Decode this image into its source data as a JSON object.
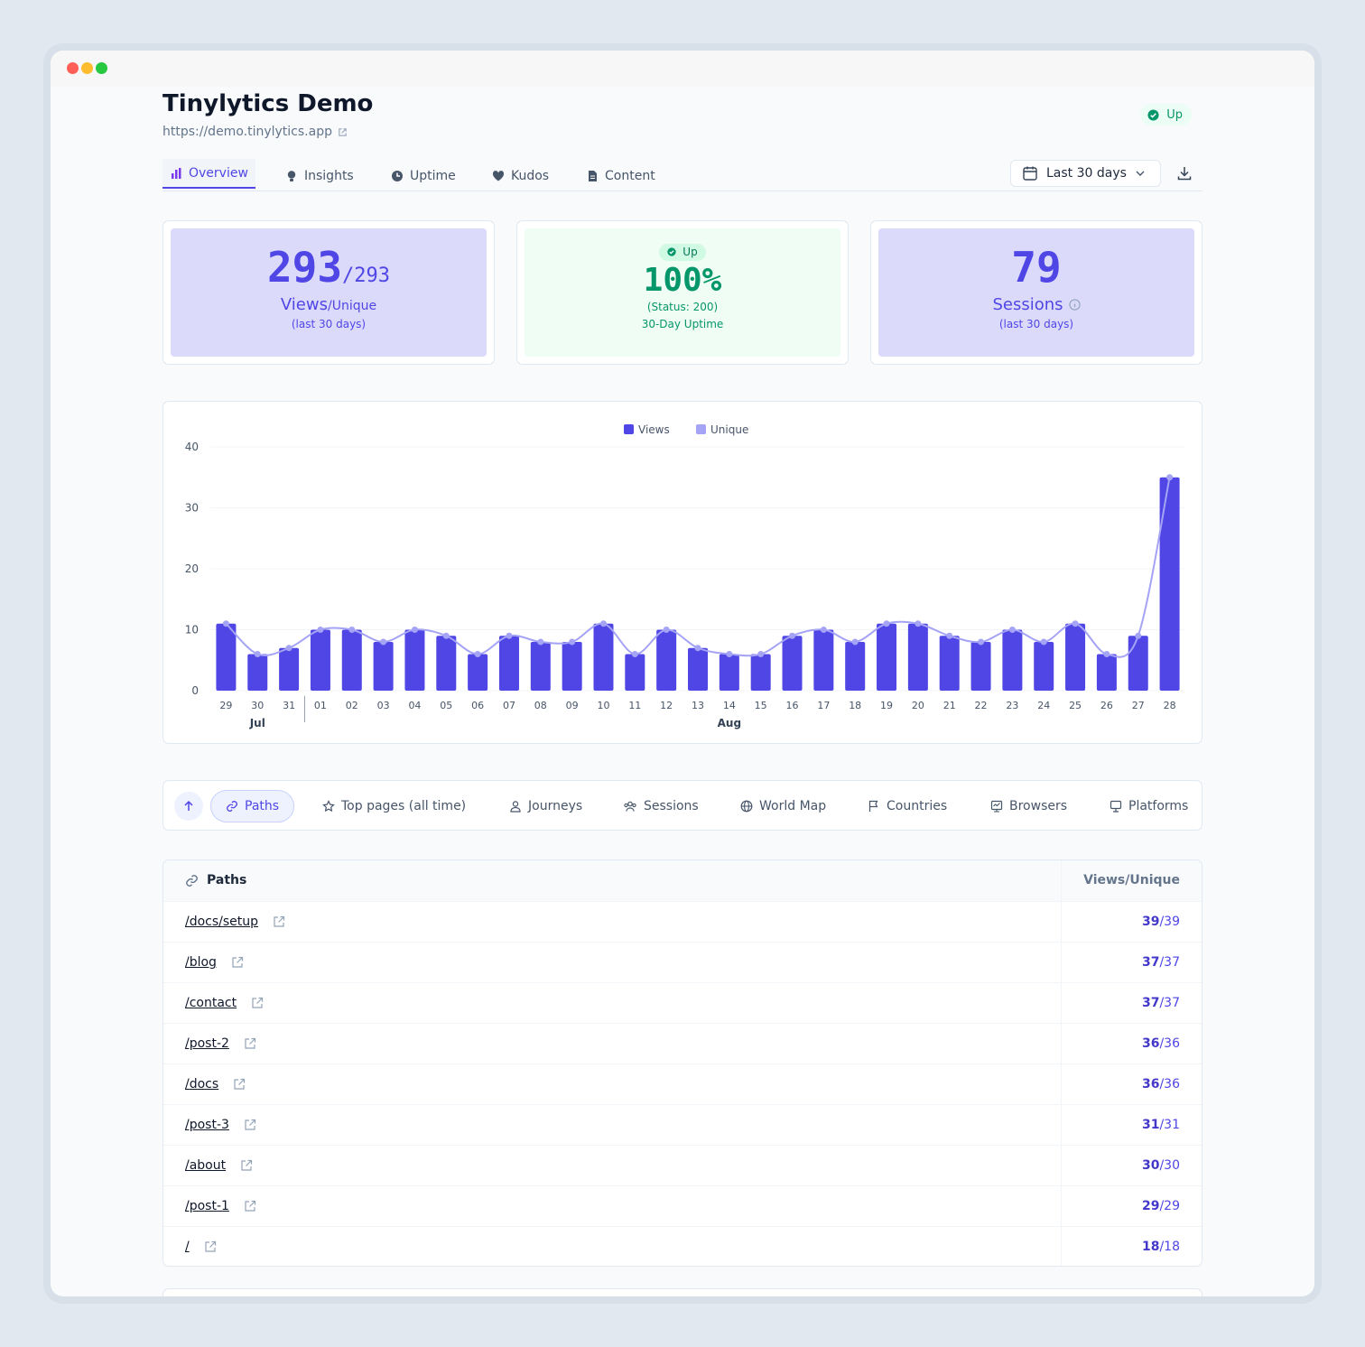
{
  "site": {
    "title": "Tinylytics Demo",
    "url": "https://demo.tinylytics.app",
    "status": "Up"
  },
  "tabs": [
    {
      "label": "Overview",
      "icon": "bar-chart-icon",
      "active": true
    },
    {
      "label": "Insights",
      "icon": "lightbulb-icon"
    },
    {
      "label": "Uptime",
      "icon": "clock-icon"
    },
    {
      "label": "Kudos",
      "icon": "heart-icon"
    },
    {
      "label": "Content",
      "icon": "document-icon"
    }
  ],
  "range": {
    "label": "Last 30 days"
  },
  "stats": {
    "views": {
      "value": "293",
      "unique": "/293",
      "label": "Views",
      "sub": "/Unique",
      "period": "(last 30 days)"
    },
    "uptime": {
      "badge": "Up",
      "value": "100%",
      "status": "(Status: 200)",
      "label": "30-Day Uptime"
    },
    "sessions": {
      "value": "79",
      "label": "Sessions",
      "period": "(last 30 days)"
    }
  },
  "colors": {
    "accent": "#4f46e5",
    "unique": "#a5a3f5",
    "success": "#059669"
  },
  "chart_data": {
    "type": "bar",
    "legend": [
      "Views",
      "Unique"
    ],
    "ylim": [
      0,
      40
    ],
    "yticks": [
      "0",
      "10",
      "20",
      "30",
      "40"
    ],
    "categories": [
      "29",
      "30",
      "31",
      "01",
      "02",
      "03",
      "04",
      "05",
      "06",
      "07",
      "08",
      "09",
      "10",
      "11",
      "12",
      "13",
      "14",
      "15",
      "16",
      "17",
      "18",
      "19",
      "20",
      "21",
      "22",
      "23",
      "24",
      "25",
      "26",
      "27",
      "28"
    ],
    "month_labels": [
      {
        "label": "Jul",
        "index": 1
      },
      {
        "label": "Aug",
        "index": 16
      }
    ],
    "month_divider_index": 2.5,
    "series": [
      {
        "name": "Views",
        "values": [
          11,
          6,
          7,
          10,
          10,
          8,
          10,
          9,
          6,
          9,
          8,
          8,
          11,
          6,
          10,
          7,
          6,
          6,
          9,
          10,
          8,
          11,
          11,
          9,
          8,
          10,
          8,
          11,
          6,
          9,
          35
        ]
      },
      {
        "name": "Unique",
        "values": [
          11,
          6,
          7,
          10,
          10,
          8,
          10,
          9,
          6,
          9,
          8,
          8,
          11,
          6,
          10,
          7,
          6,
          6,
          9,
          10,
          8,
          11,
          11,
          9,
          8,
          10,
          8,
          11,
          6,
          9,
          35
        ]
      }
    ]
  },
  "subnav": [
    {
      "label": "Paths",
      "icon": "link-icon",
      "active": true
    },
    {
      "label": "Top pages (all time)",
      "icon": "star-icon"
    },
    {
      "label": "Journeys",
      "icon": "user-icon"
    },
    {
      "label": "Sessions",
      "icon": "users-icon"
    },
    {
      "label": "World Map",
      "icon": "globe-icon"
    },
    {
      "label": "Countries",
      "icon": "flag-icon"
    },
    {
      "label": "Browsers",
      "icon": "browser-icon"
    },
    {
      "label": "Platforms",
      "icon": "monitor-icon"
    }
  ],
  "paths_table": {
    "title": "Paths",
    "column": "Views/Unique",
    "rows": [
      {
        "path": "/docs/setup",
        "views": "39",
        "unique": "/39"
      },
      {
        "path": "/blog",
        "views": "37",
        "unique": "/37"
      },
      {
        "path": "/contact",
        "views": "37",
        "unique": "/37"
      },
      {
        "path": "/post-2",
        "views": "36",
        "unique": "/36"
      },
      {
        "path": "/docs",
        "views": "36",
        "unique": "/36"
      },
      {
        "path": "/post-3",
        "views": "31",
        "unique": "/31"
      },
      {
        "path": "/about",
        "views": "30",
        "unique": "/30"
      },
      {
        "path": "/post-1",
        "views": "29",
        "unique": "/29"
      },
      {
        "path": "/",
        "views": "18",
        "unique": "/18"
      }
    ]
  }
}
